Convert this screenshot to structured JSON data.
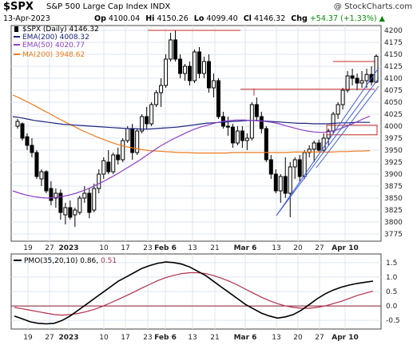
{
  "header": {
    "symbol": "$SPX",
    "name": "S&P 500 Large Cap Index INDX",
    "watermark": "@ StockCharts.com",
    "date": "13-Apr-2023",
    "op_label": "Op",
    "op": "4100.04",
    "hi_label": "Hi",
    "hi": "4150.26",
    "lo_label": "Lo",
    "lo": "4099.40",
    "cl_label": "Cl",
    "cl": "4146.32",
    "chg_label": "Chg",
    "chg": "+54.37 (+1.33%)",
    "chg_arrow": "▲",
    "chg_color": "#0a8a0a"
  },
  "chart_data": [
    {
      "type": "candlestick",
      "title": "$SPX (Daily) 4146.32",
      "y_ticks": [
        "3775",
        "3800",
        "3825",
        "3850",
        "3875",
        "3900",
        "3925",
        "3950",
        "3975",
        "4000",
        "4025",
        "4050",
        "4075",
        "4100",
        "4125",
        "4150",
        "4175",
        "4200"
      ],
      "ylim": [
        3760,
        4210
      ],
      "x_labels": [
        "19",
        "27",
        "2023",
        "10",
        "17",
        "23",
        "Feb 6",
        "13",
        "21",
        "Mar 6",
        "13",
        "20",
        "27",
        "Apr 10"
      ],
      "legend": [
        {
          "label": "$SPX (Daily) 4146.32",
          "color": "#000000"
        },
        {
          "label": "EMA(200) 4008.32",
          "color": "#1a237e"
        },
        {
          "label": "EMA(50) 4020.77",
          "color": "#8a3fc6"
        },
        {
          "label": "MA(200) 3948.62",
          "color": "#ef7a1a"
        }
      ],
      "candles": [
        [
          4000,
          4015,
          3995,
          4010
        ],
        [
          4005,
          4008,
          3970,
          3975
        ],
        [
          3978,
          3985,
          3950,
          3960
        ],
        [
          3960,
          3975,
          3935,
          3945
        ],
        [
          3945,
          3950,
          3890,
          3895
        ],
        [
          3890,
          3910,
          3875,
          3905
        ],
        [
          3905,
          3908,
          3860,
          3865
        ],
        [
          3870,
          3885,
          3835,
          3845
        ],
        [
          3850,
          3870,
          3830,
          3860
        ],
        [
          3860,
          3868,
          3805,
          3820
        ],
        [
          3815,
          3840,
          3795,
          3830
        ],
        [
          3830,
          3845,
          3805,
          3810
        ],
        [
          3815,
          3830,
          3790,
          3825
        ],
        [
          3820,
          3855,
          3815,
          3850
        ],
        [
          3850,
          3875,
          3840,
          3860
        ],
        [
          3860,
          3870,
          3808,
          3820
        ],
        [
          3825,
          3880,
          3820,
          3870
        ],
        [
          3870,
          3910,
          3860,
          3900
        ],
        [
          3900,
          3935,
          3890,
          3928
        ],
        [
          3925,
          3950,
          3900,
          3905
        ],
        [
          3905,
          3945,
          3900,
          3940
        ],
        [
          3940,
          3955,
          3920,
          3930
        ],
        [
          3930,
          3975,
          3925,
          3970
        ],
        [
          3970,
          4000,
          3965,
          3995
        ],
        [
          3995,
          4005,
          3930,
          3945
        ],
        [
          3945,
          3995,
          3940,
          3990
        ],
        [
          3990,
          4025,
          3985,
          4020
        ],
        [
          4020,
          4040,
          3995,
          4005
        ],
        [
          4005,
          4050,
          4000,
          4045
        ],
        [
          4045,
          4075,
          4040,
          4070
        ],
        [
          4070,
          4100,
          4040,
          4085
        ],
        [
          4085,
          4150,
          4080,
          4140
        ],
        [
          4140,
          4195,
          4135,
          4180
        ],
        [
          4180,
          4200,
          4135,
          4140
        ],
        [
          4140,
          4150,
          4100,
          4110
        ],
        [
          4110,
          4130,
          4095,
          4125
        ],
        [
          4125,
          4135,
          4085,
          4095
        ],
        [
          4095,
          4160,
          4090,
          4155
        ],
        [
          4155,
          4165,
          4100,
          4110
        ],
        [
          4110,
          4145,
          4100,
          4135
        ],
        [
          4135,
          4150,
          4070,
          4080
        ],
        [
          4080,
          4110,
          4060,
          4095
        ],
        [
          4095,
          4100,
          4015,
          4020
        ],
        [
          4020,
          4030,
          3995,
          4000
        ],
        [
          4000,
          4020,
          3980,
          3998
        ],
        [
          3998,
          4005,
          3955,
          3965
        ],
        [
          3965,
          4000,
          3960,
          3990
        ],
        [
          3990,
          4000,
          3955,
          3970
        ],
        [
          3970,
          3985,
          3950,
          3975
        ],
        [
          3975,
          4050,
          3970,
          4045
        ],
        [
          4045,
          4060,
          4010,
          4020
        ],
        [
          4020,
          4030,
          3985,
          3995
        ],
        [
          3995,
          4000,
          3925,
          3930
        ],
        [
          3930,
          3940,
          3890,
          3900
        ],
        [
          3900,
          3910,
          3860,
          3865
        ],
        [
          3865,
          3900,
          3840,
          3895
        ],
        [
          3895,
          3935,
          3850,
          3860
        ],
        [
          3860,
          3925,
          3810,
          3915
        ],
        [
          3915,
          3935,
          3890,
          3930
        ],
        [
          3930,
          3940,
          3885,
          3895
        ],
        [
          3895,
          3950,
          3890,
          3945
        ],
        [
          3945,
          3960,
          3935,
          3952
        ],
        [
          3952,
          3970,
          3925,
          3965
        ],
        [
          3965,
          3972,
          3945,
          3950
        ],
        [
          3950,
          3985,
          3945,
          3975
        ],
        [
          3975,
          3995,
          3960,
          3990
        ],
        [
          3990,
          4030,
          3985,
          4025
        ],
        [
          4025,
          4050,
          4015,
          4045
        ],
        [
          4045,
          4080,
          4035,
          4075
        ],
        [
          4075,
          4115,
          4070,
          4105
        ],
        [
          4105,
          4120,
          4085,
          4100
        ],
        [
          4100,
          4110,
          4075,
          4090
        ],
        [
          4090,
          4115,
          4080,
          4095
        ],
        [
          4095,
          4120,
          4080,
          4108
        ],
        [
          4108,
          4125,
          4085,
          4092
        ],
        [
          4092,
          4150,
          4090,
          4146
        ]
      ],
      "overlays": {
        "ema200": [
          4020,
          4018,
          4015,
          4012,
          4010,
          4008,
          4006,
          4004,
          4003,
          4002,
          4001,
          4000,
          3999,
          3998,
          3997,
          3996,
          3995,
          3995,
          3994,
          3994,
          3995,
          3996,
          3997,
          3998,
          4000,
          4002,
          4004,
          4006,
          4007,
          4008,
          4009,
          4010,
          4011,
          4012,
          4012,
          4011,
          4010,
          4009,
          4008,
          4007,
          4006,
          4006,
          4005,
          4005,
          4005,
          4006,
          4007,
          4007,
          4008,
          4008,
          4008
        ],
        "ema50": [
          3865,
          3860,
          3856,
          3853,
          3851,
          3850,
          3851,
          3853,
          3856,
          3860,
          3865,
          3871,
          3878,
          3885,
          3893,
          3901,
          3910,
          3919,
          3928,
          3938,
          3948,
          3958,
          3966,
          3974,
          3981,
          3988,
          3994,
          3999,
          4003,
          4007,
          4010,
          4012,
          4013,
          4013,
          4012,
          4011,
          4010,
          4008,
          4005,
          4001,
          3997,
          3993,
          3990,
          3988,
          3987,
          3988,
          3991,
          3996,
          4002,
          4008,
          4015,
          4021
        ],
        "ma200": [
          4065,
          4058,
          4050,
          4042,
          4033,
          4025,
          4016,
          4008,
          4000,
          3992,
          3985,
          3978,
          3972,
          3966,
          3961,
          3957,
          3954,
          3951,
          3949,
          3948,
          3947,
          3946,
          3945,
          3945,
          3944,
          3944,
          3944,
          3944,
          3944,
          3945,
          3945,
          3945,
          3945,
          3945,
          3945,
          3945,
          3945,
          3946,
          3946,
          3946,
          3946,
          3946,
          3946,
          3947,
          3947,
          3948,
          3948,
          3949
        ]
      },
      "annotations": {
        "horizontal_lines": [
          4200,
          4135,
          4077
        ],
        "box": {
          "y_top": 4002,
          "y_bottom": 3982
        }
      }
    },
    {
      "type": "line",
      "title": "PMO(35,20,10) 0.86, 0.51",
      "legend_main": "PMO(35,20,10) 0.86,",
      "legend_signal": "0.51",
      "y_ticks": [
        "-0.5",
        "0.0",
        "0.5",
        "1.0",
        "1.5"
      ],
      "ylim": [
        -0.8,
        1.8
      ],
      "zero_line": 0,
      "x_labels": [
        "19",
        "27",
        "2023",
        "10",
        "17",
        "23",
        "Feb 6",
        "13",
        "21",
        "Mar 6",
        "13",
        "20",
        "27",
        "Apr 10"
      ],
      "series": [
        {
          "name": "PMO",
          "values": [
            -0.35,
            -0.45,
            -0.55,
            -0.6,
            -0.62,
            -0.6,
            -0.5,
            -0.35,
            -0.15,
            0.05,
            0.25,
            0.45,
            0.65,
            0.85,
            1.0,
            1.15,
            1.3,
            1.4,
            1.48,
            1.52,
            1.5,
            1.45,
            1.35,
            1.2,
            1.05,
            0.85,
            0.65,
            0.45,
            0.25,
            0.05,
            -0.1,
            -0.25,
            -0.35,
            -0.42,
            -0.38,
            -0.3,
            -0.15,
            0.05,
            0.25,
            0.42,
            0.55,
            0.65,
            0.72,
            0.78,
            0.82,
            0.86
          ]
        },
        {
          "name": "Signal",
          "values": [
            -0.05,
            -0.1,
            -0.15,
            -0.2,
            -0.25,
            -0.3,
            -0.32,
            -0.3,
            -0.26,
            -0.2,
            -0.12,
            -0.02,
            0.1,
            0.22,
            0.35,
            0.48,
            0.62,
            0.75,
            0.88,
            0.98,
            1.06,
            1.12,
            1.15,
            1.15,
            1.12,
            1.05,
            0.96,
            0.85,
            0.72,
            0.58,
            0.44,
            0.3,
            0.18,
            0.08,
            0.0,
            -0.05,
            -0.08,
            -0.08,
            -0.05,
            0.0,
            0.08,
            0.16,
            0.26,
            0.36,
            0.44,
            0.51
          ]
        }
      ]
    }
  ]
}
